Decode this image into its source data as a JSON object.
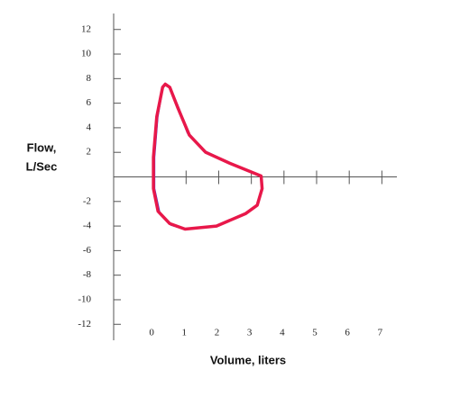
{
  "chart_data": {
    "type": "line",
    "y_label_lines": [
      "Flow,",
      "L/Sec"
    ],
    "x_label": "Volume, liters",
    "xlim": [
      -1.22,
      7.46
    ],
    "ylim": [
      -13.3,
      13.3
    ],
    "xticks": [
      0,
      1,
      2,
      3,
      4,
      5,
      6,
      7
    ],
    "yticks": [
      -12,
      -10,
      -8,
      -6,
      -4,
      -2,
      2,
      4,
      6,
      8,
      10,
      12
    ],
    "series": [
      {
        "color": "#3a2fd8",
        "x": [
          0.36,
          0.5,
          0.75,
          1.05,
          1.55,
          2.35,
          3.3,
          3.33,
          3.18,
          2.82,
          1.93,
          0.97,
          0.55,
          0.18,
          0.02,
          0.02,
          0.12,
          0.28,
          0.36
        ],
        "values": [
          7.55,
          7.3,
          5.7,
          3.6,
          2.1,
          1.1,
          0.07,
          -0.95,
          -2.3,
          -3.0,
          -4.0,
          -4.25,
          -3.9,
          -2.9,
          -0.95,
          1.6,
          4.9,
          7.3,
          7.55
        ]
      },
      {
        "color": "#e8184a",
        "x": [
          0.36,
          0.5,
          0.75,
          1.1,
          1.6,
          2.35,
          3.3,
          3.33,
          3.18,
          2.82,
          1.93,
          0.97,
          0.5,
          0.14,
          0.0,
          0.0,
          0.1,
          0.28,
          0.36
        ],
        "values": [
          7.55,
          7.3,
          5.6,
          3.4,
          2.0,
          1.1,
          0.07,
          -0.95,
          -2.3,
          -3.0,
          -4.0,
          -4.25,
          -3.8,
          -2.8,
          -0.95,
          1.6,
          4.9,
          7.3,
          7.55
        ]
      }
    ]
  }
}
